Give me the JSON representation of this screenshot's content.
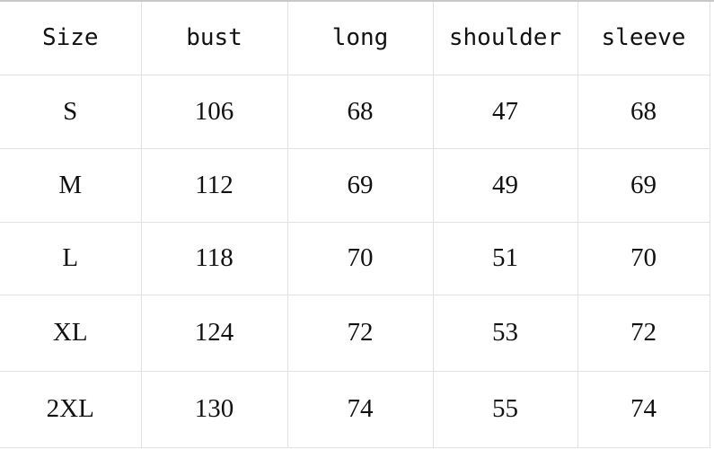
{
  "table": {
    "headers": [
      "Size",
      "bust",
      "long",
      "shoulder",
      "sleeve"
    ],
    "rows": [
      [
        "S",
        "106",
        "68",
        "47",
        "68"
      ],
      [
        "M",
        "112",
        "69",
        "49",
        "69"
      ],
      [
        "L",
        "118",
        "70",
        "51",
        "70"
      ],
      [
        "XL",
        "124",
        "72",
        "53",
        "72"
      ],
      [
        "2XL",
        "130",
        "74",
        "55",
        "74"
      ]
    ]
  },
  "colors": {
    "grid": "#e2e2e2",
    "text": "#111111"
  }
}
